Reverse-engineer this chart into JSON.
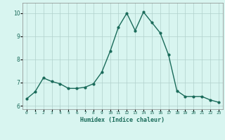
{
  "x": [
    0,
    1,
    2,
    3,
    4,
    5,
    6,
    7,
    8,
    9,
    10,
    11,
    12,
    13,
    14,
    15,
    16,
    17,
    18,
    19,
    20,
    21,
    22,
    23
  ],
  "y": [
    6.3,
    6.6,
    7.2,
    7.05,
    6.95,
    6.75,
    6.75,
    6.8,
    6.95,
    7.45,
    8.35,
    9.4,
    10.0,
    9.25,
    10.05,
    9.6,
    9.15,
    8.2,
    6.65,
    6.4,
    6.4,
    6.4,
    6.25,
    6.15
  ],
  "line_color": "#1a6b5a",
  "marker": "o",
  "marker_size": 2.0,
  "linewidth": 1.0,
  "bg_color": "#d8f5f0",
  "grid_color": "#b0d0cc",
  "xlabel": "Humidex (Indice chaleur)",
  "xlim": [
    -0.5,
    23.5
  ],
  "ylim": [
    5.85,
    10.45
  ],
  "yticks": [
    6,
    7,
    8,
    9,
    10
  ],
  "xtick_labels": [
    "0",
    "1",
    "2",
    "3",
    "4",
    "5",
    "6",
    "7",
    "8",
    "9",
    "10",
    "11",
    "12",
    "13",
    "14",
    "15",
    "16",
    "17",
    "18",
    "19",
    "20",
    "21",
    "22",
    "23"
  ]
}
